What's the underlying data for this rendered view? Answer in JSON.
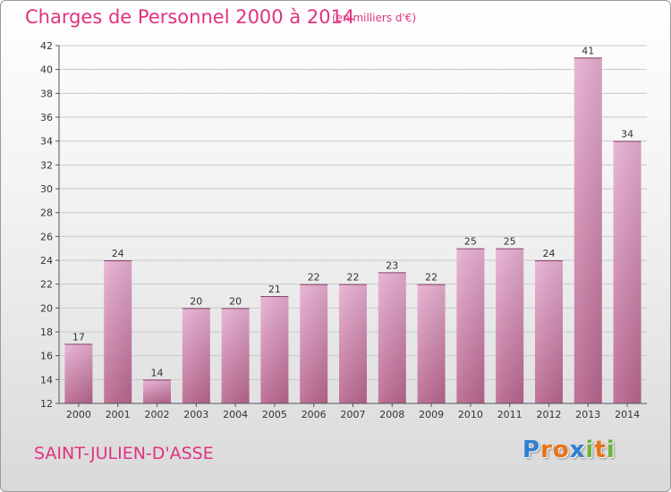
{
  "header": {
    "title": "Charges de Personnel 2000 à 2014",
    "unit": "(en milliers d'€)"
  },
  "footer": {
    "commune": "SAINT-JULIEN-D'ASSE",
    "logo": [
      "P",
      "r",
      "o",
      "x",
      "i",
      "t",
      "i"
    ],
    "logo_colors": [
      "#2f7fd0",
      "#e8731a",
      "#e8731a",
      "#2f7fd0",
      "#6cb33f",
      "#e8731a",
      "#6cb33f"
    ]
  },
  "colors": {
    "bar_light": "#e8b0d2",
    "bar_dark": "#b9668f",
    "title": "#e0337f"
  },
  "chart_data": {
    "type": "bar",
    "title": "Charges de Personnel 2000 à 2014",
    "subtitle": "(en milliers d'€)",
    "xlabel": "",
    "ylabel": "",
    "categories": [
      "2000",
      "2001",
      "2002",
      "2003",
      "2004",
      "2005",
      "2006",
      "2007",
      "2008",
      "2009",
      "2010",
      "2011",
      "2012",
      "2013",
      "2014"
    ],
    "values": [
      17,
      24,
      14,
      20,
      20,
      21,
      22,
      22,
      23,
      22,
      25,
      25,
      24,
      41,
      34
    ],
    "ylim": [
      12,
      42
    ],
    "yticks": [
      12,
      14,
      16,
      18,
      20,
      22,
      24,
      26,
      28,
      30,
      32,
      34,
      36,
      38,
      40,
      42
    ],
    "grid": true,
    "data_labels": true
  }
}
